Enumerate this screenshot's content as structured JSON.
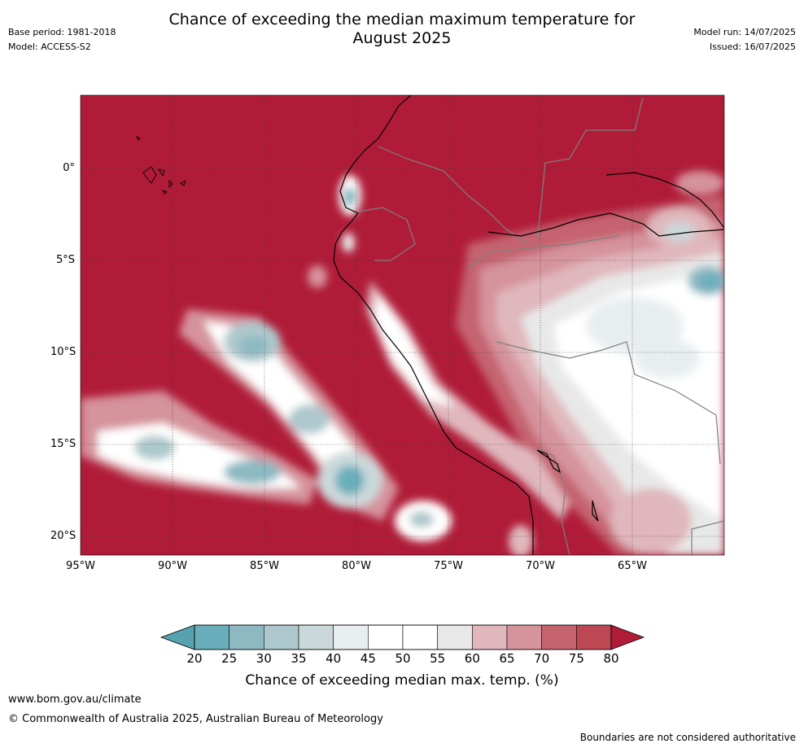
{
  "header": {
    "title_line1": "Chance of exceeding the median maximum temperature for",
    "title_line2": "August 2025",
    "base_period": "Base period: 1981-2018",
    "model": "Model: ACCESS-S2",
    "model_run": "Model run: 14/07/2025",
    "issued": "Issued: 16/07/2025"
  },
  "map": {
    "lat_labels": [
      "0°",
      "5°S",
      "10°S",
      "15°S",
      "20°S"
    ],
    "lon_labels": [
      "95°W",
      "90°W",
      "85°W",
      "80°W",
      "75°W",
      "70°W",
      "65°W"
    ],
    "background_color": "#b01c38",
    "coastline_color": "#000000",
    "border_color": "#808080"
  },
  "colorbar": {
    "ticks": [
      "20",
      "25",
      "30",
      "35",
      "40",
      "45",
      "50",
      "55",
      "60",
      "65",
      "70",
      "75",
      "80"
    ],
    "colors": [
      "#6aaebb",
      "#8db9c3",
      "#adc8cc",
      "#cbd8da",
      "#e8eef0",
      "#ffffff",
      "#ffffff",
      "#e8e8e8",
      "#e0b7bd",
      "#d5939c",
      "#c5636f",
      "#bd4854"
    ],
    "below_color": "#56a2ae",
    "above_color": "#b01c38",
    "label": "Chance of exceeding median max. temp. (%)"
  },
  "footer": {
    "website": "www.bom.gov.au/climate",
    "copyright": "© Commonwealth of Australia 2025, Australian Bureau of Meteorology",
    "disclaimer": "Boundaries are not considered authoritative"
  }
}
